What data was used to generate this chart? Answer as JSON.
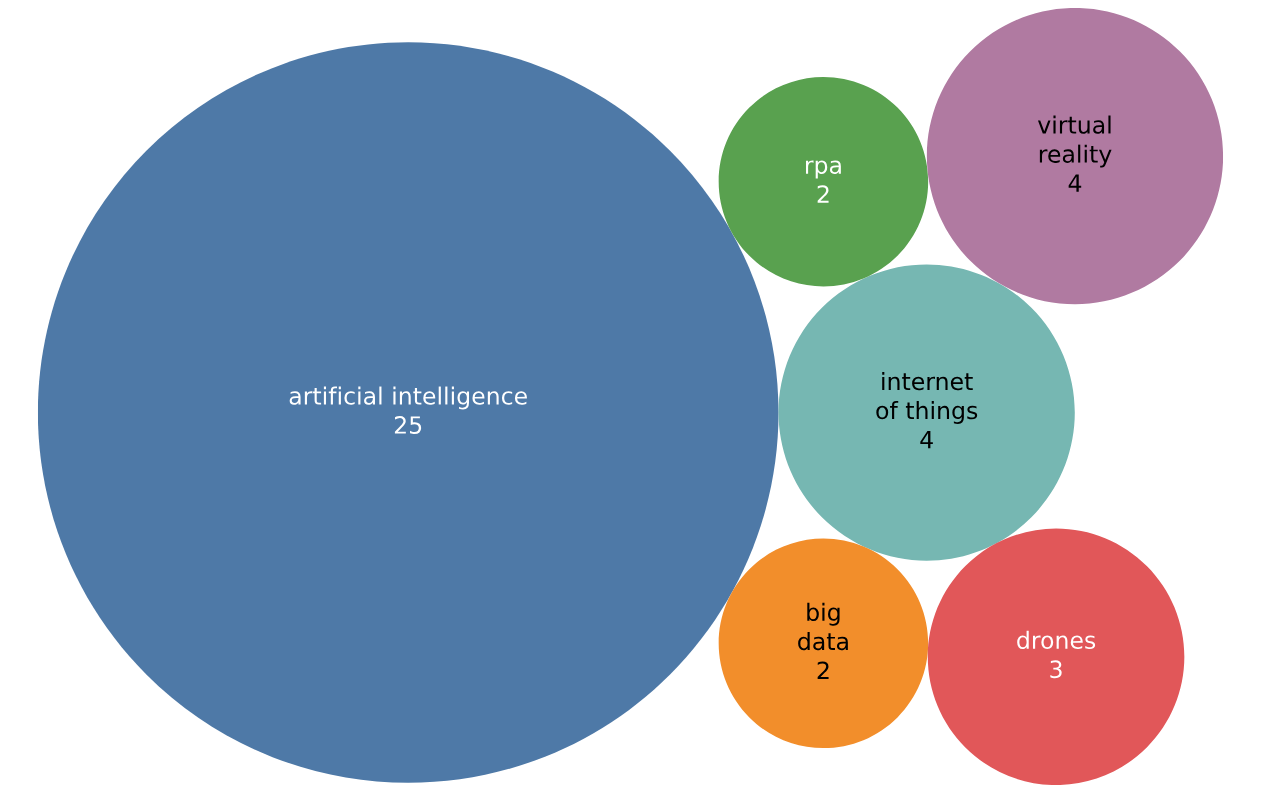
{
  "chart_data": {
    "type": "other",
    "categories": [
      "artificial intelligence",
      "internet of things",
      "rpa",
      "big data",
      "virtual reality",
      "drones"
    ],
    "values": [
      25,
      4,
      2,
      2,
      4,
      3
    ],
    "colors": [
      "#4e79a7",
      "#76b7b2",
      "#59a14f",
      "#f28e2b",
      "#b07aa1",
      "#e15759"
    ],
    "data_labels": true
  }
}
